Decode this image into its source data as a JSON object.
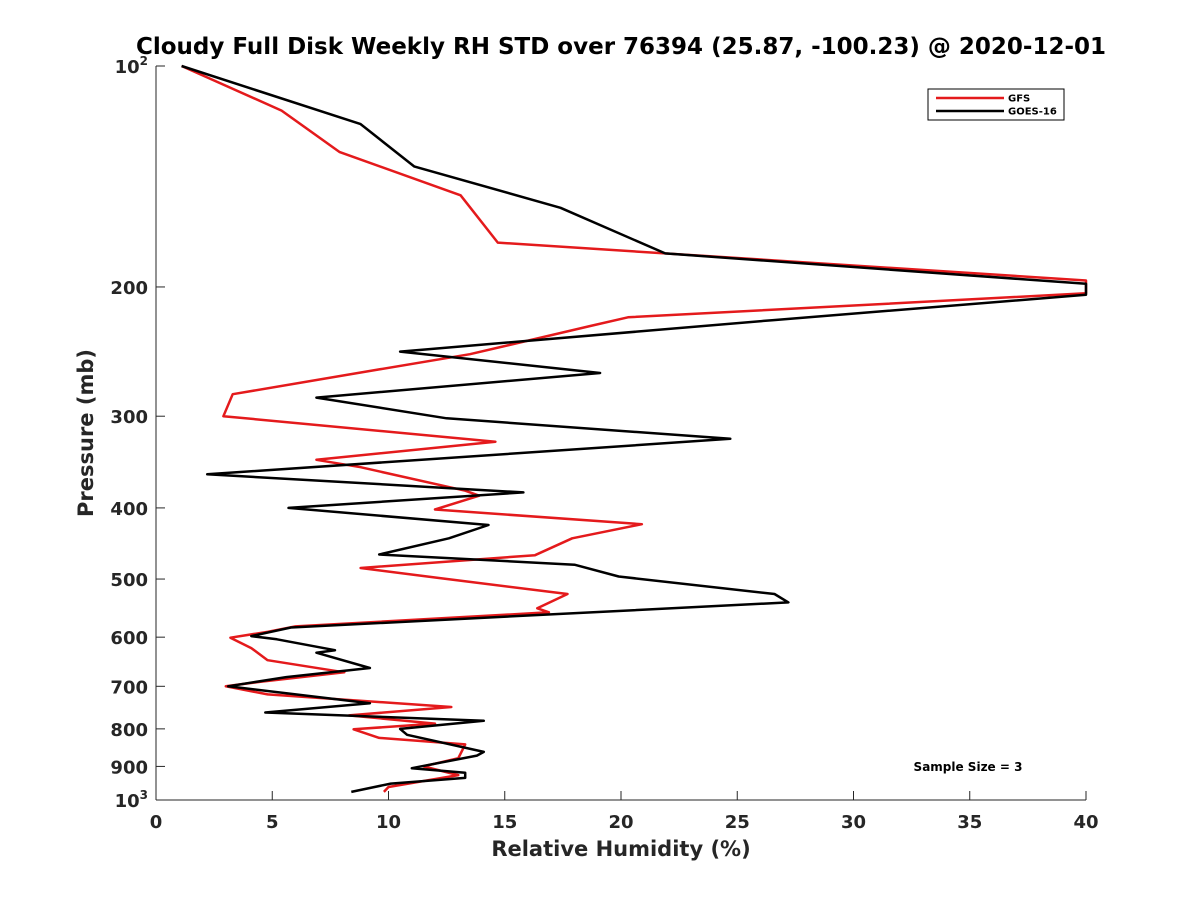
{
  "chart_data": {
    "type": "line",
    "title": "Cloudy Full Disk Weekly RH STD over 76394 (25.87, -100.23) @ 2020-12-01",
    "xlabel": "Relative Humidity (%)",
    "ylabel": "Pressure (mb)",
    "xlim": [
      0,
      40
    ],
    "ylim": [
      100,
      1000
    ],
    "y_scale": "log",
    "y_reversed": true,
    "x_ticks": [
      0,
      5,
      10,
      15,
      20,
      25,
      30,
      35,
      40
    ],
    "x_tick_labels": [
      "0",
      "5",
      "10",
      "15",
      "20",
      "25",
      "30",
      "35",
      "40"
    ],
    "y_ticks": [
      100,
      200,
      300,
      400,
      500,
      600,
      700,
      800,
      900,
      1000
    ],
    "y_tick_labels": [
      {
        "base": "10",
        "sup": "2"
      },
      {
        "base": "200",
        "sup": ""
      },
      {
        "base": "300",
        "sup": ""
      },
      {
        "base": "400",
        "sup": ""
      },
      {
        "base": "500",
        "sup": ""
      },
      {
        "base": "600",
        "sup": ""
      },
      {
        "base": "700",
        "sup": ""
      },
      {
        "base": "800",
        "sup": ""
      },
      {
        "base": "900",
        "sup": ""
      },
      {
        "base": "10",
        "sup": "3"
      }
    ],
    "grid": false,
    "legend_position": "top-right",
    "annotation": "Sample Size = 3",
    "series": [
      {
        "name": "GFS",
        "color": "#e41a1c",
        "points": [
          [
            1.1,
            100
          ],
          [
            5.4,
            115
          ],
          [
            7.9,
            131
          ],
          [
            13.1,
            150
          ],
          [
            14.7,
            174
          ],
          [
            40.0,
            196
          ],
          [
            40.0,
            204
          ],
          [
            20.3,
            220
          ],
          [
            18.7,
            226
          ],
          [
            13.5,
            247
          ],
          [
            9.6,
            259
          ],
          [
            3.3,
            280
          ],
          [
            2.9,
            300
          ],
          [
            14.6,
            325
          ],
          [
            6.9,
            344
          ],
          [
            8.8,
            352
          ],
          [
            13.3,
            379
          ],
          [
            13.9,
            385
          ],
          [
            12.0,
            402
          ],
          [
            20.9,
            421
          ],
          [
            17.9,
            440
          ],
          [
            16.3,
            464
          ],
          [
            8.8,
            483
          ],
          [
            12.3,
            499
          ],
          [
            17.7,
            524
          ],
          [
            16.4,
            548
          ],
          [
            16.9,
            555
          ],
          [
            6.0,
            580
          ],
          [
            4.8,
            590
          ],
          [
            3.2,
            601
          ],
          [
            4.1,
            621
          ],
          [
            4.8,
            645
          ],
          [
            8.1,
            670
          ],
          [
            4.5,
            690
          ],
          [
            3.0,
            700
          ],
          [
            4.8,
            718
          ],
          [
            12.7,
            747
          ],
          [
            8.3,
            767
          ],
          [
            12.0,
            787
          ],
          [
            8.5,
            801
          ],
          [
            9.6,
            823
          ],
          [
            13.3,
            840
          ],
          [
            13.0,
            877
          ],
          [
            11.5,
            900
          ],
          [
            13.0,
            925
          ],
          [
            10.0,
            960
          ],
          [
            9.8,
            975
          ]
        ]
      },
      {
        "name": "GOES-16",
        "color": "#000000",
        "points": [
          [
            1.1,
            100
          ],
          [
            8.8,
            120
          ],
          [
            11.1,
            137
          ],
          [
            17.4,
            156
          ],
          [
            21.9,
            180
          ],
          [
            40.0,
            198
          ],
          [
            40.0,
            205
          ],
          [
            26.5,
            222
          ],
          [
            10.5,
            245
          ],
          [
            19.1,
            262
          ],
          [
            6.9,
            283
          ],
          [
            12.5,
            302
          ],
          [
            24.7,
            322
          ],
          [
            2.2,
            360
          ],
          [
            15.8,
            381
          ],
          [
            5.7,
            400
          ],
          [
            14.3,
            422
          ],
          [
            12.6,
            440
          ],
          [
            9.6,
            463
          ],
          [
            18.0,
            478
          ],
          [
            19.9,
            496
          ],
          [
            26.6,
            524
          ],
          [
            27.2,
            538
          ],
          [
            5.8,
            582
          ],
          [
            4.1,
            598
          ],
          [
            5.2,
            604
          ],
          [
            7.7,
            625
          ],
          [
            6.9,
            630
          ],
          [
            9.2,
            661
          ],
          [
            5.6,
            680
          ],
          [
            3.1,
            700
          ],
          [
            9.2,
            738
          ],
          [
            4.7,
            760
          ],
          [
            14.1,
            780
          ],
          [
            10.5,
            800
          ],
          [
            10.8,
            815
          ],
          [
            14.1,
            860
          ],
          [
            13.8,
            870
          ],
          [
            11.0,
            905
          ],
          [
            13.3,
            918
          ],
          [
            13.3,
            933
          ],
          [
            10.1,
            950
          ],
          [
            8.4,
            975
          ]
        ]
      }
    ]
  }
}
